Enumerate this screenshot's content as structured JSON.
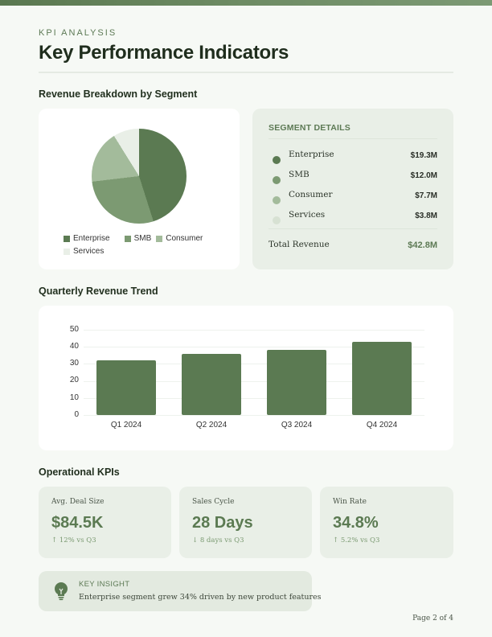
{
  "header": {
    "eyebrow": "KPI ANALYSIS",
    "title": "Key Performance Indicators"
  },
  "revenue_breakdown": {
    "heading": "Revenue Breakdown by Segment",
    "legend": [
      {
        "label": "Enterprise",
        "color": "#5b7a52"
      },
      {
        "label": "SMB",
        "color": "#7c9a72"
      },
      {
        "label": "Consumer",
        "color": "#a3bb9b"
      },
      {
        "label": "Services",
        "color": "#e9efe7"
      }
    ]
  },
  "segment_details": {
    "title": "SEGMENT DETAILS",
    "rows": [
      {
        "name": "Enterprise",
        "value": "$19.3M",
        "color": "#5b7a52"
      },
      {
        "name": "SMB",
        "value": "$12.0M",
        "color": "#7c9a72"
      },
      {
        "name": "Consumer",
        "value": "$7.7M",
        "color": "#a3bb9b"
      },
      {
        "name": "Services",
        "value": "$3.8M",
        "color": "#d7e1d3"
      }
    ],
    "total_label": "Total Revenue",
    "total_value": "$42.8M"
  },
  "quarterly": {
    "heading": "Quarterly Revenue Trend",
    "yticks": [
      "50",
      "40",
      "30",
      "20",
      "10",
      "0"
    ],
    "xlabels": [
      "Q1 2024",
      "Q2 2024",
      "Q3 2024",
      "Q4 2024"
    ]
  },
  "operational": {
    "heading": "Operational KPIs",
    "cards": [
      {
        "label": "Avg. Deal Size",
        "value": "$84.5K",
        "delta": "↑ 12% vs Q3"
      },
      {
        "label": "Sales Cycle",
        "value": "28 Days",
        "delta": "↓ 8 days vs Q3"
      },
      {
        "label": "Win Rate",
        "value": "34.8%",
        "delta": "↑ 5.2% vs Q3"
      }
    ]
  },
  "insight": {
    "icon": "lightbulb-icon",
    "title": "KEY INSIGHT",
    "text": "Enterprise segment grew 34% driven by new product features"
  },
  "footer": {
    "page": "Page 2 of 4"
  },
  "colors": {
    "accent": "#5b7a52",
    "accent_light": "#7c9a72",
    "background": "#f6f9f5",
    "card_tint": "#e9efe7"
  },
  "chart_data": [
    {
      "type": "pie",
      "title": "Revenue Breakdown by Segment",
      "categories": [
        "Enterprise",
        "SMB",
        "Consumer",
        "Services"
      ],
      "values": [
        19.3,
        12.0,
        7.7,
        3.8
      ],
      "unit": "$M",
      "legend_position": "bottom"
    },
    {
      "type": "bar",
      "title": "Quarterly Revenue Trend",
      "categories": [
        "Q1 2024",
        "Q2 2024",
        "Q3 2024",
        "Q4 2024"
      ],
      "values": [
        32.1,
        36.0,
        38.2,
        42.8
      ],
      "xlabel": "",
      "ylabel": "",
      "ylim": [
        0,
        50
      ],
      "yticks": [
        0,
        10,
        20,
        30,
        40,
        50
      ],
      "grid": true
    }
  ]
}
